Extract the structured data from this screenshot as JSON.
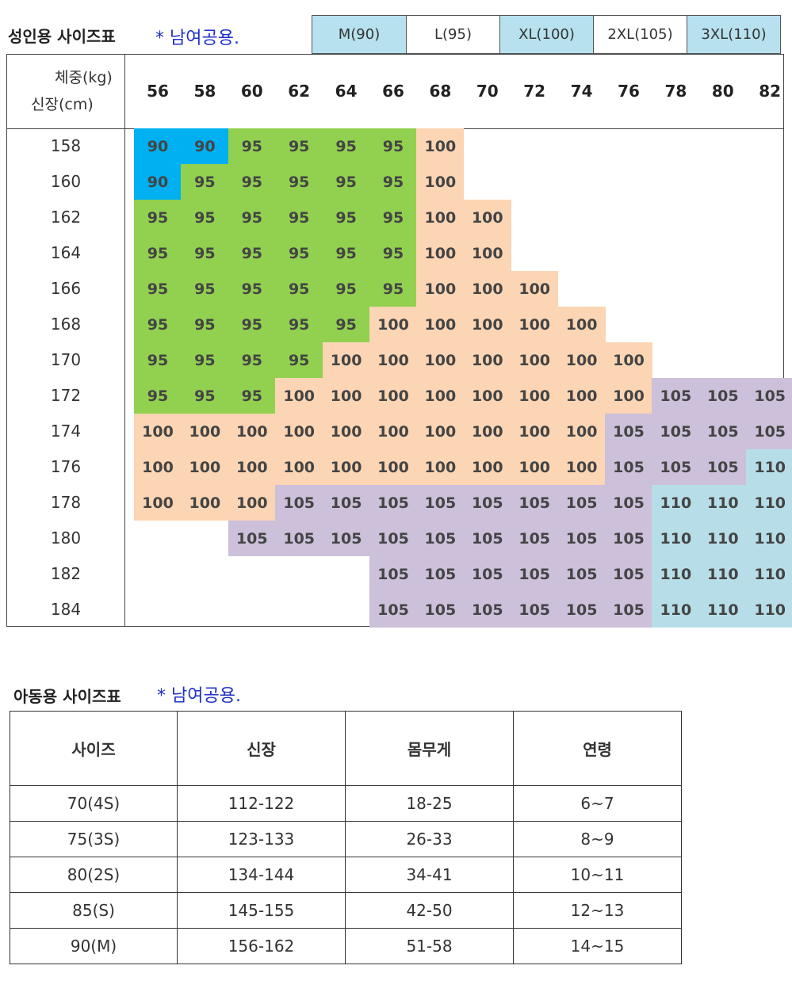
{
  "adult": {
    "title": "성인용 사이즈표",
    "note": "* 남여공용.",
    "legend": [
      {
        "label": "M(90)",
        "color": "#b7e1ee"
      },
      {
        "label": "L(95)",
        "color": "#ffffff"
      },
      {
        "label": "XL(100)",
        "color": "#b7e1ee"
      },
      {
        "label": "2XL(105)",
        "color": "#ffffff"
      },
      {
        "label": "3XL(110)",
        "color": "#b7e1ee"
      }
    ],
    "corner_weight": "체중(kg)",
    "corner_height": "신장(cm)",
    "weights": [
      "56",
      "58",
      "60",
      "62",
      "64",
      "66",
      "68",
      "70",
      "72",
      "74",
      "76",
      "78",
      "80",
      "82"
    ],
    "heights": [
      "158",
      "160",
      "162",
      "164",
      "166",
      "168",
      "170",
      "172",
      "174",
      "176",
      "178",
      "180",
      "182",
      "184"
    ],
    "size_colors": {
      "90": "#00b0f0",
      "95": "#92d050",
      "100": "#fcd5b4",
      "105": "#ccc0da",
      "110": "#b7dee8"
    },
    "grid": [
      [
        "90",
        "90",
        "95",
        "95",
        "95",
        "95",
        "100",
        "",
        "",
        "",
        "",
        "",
        "",
        ""
      ],
      [
        "90",
        "95",
        "95",
        "95",
        "95",
        "95",
        "100",
        "",
        "",
        "",
        "",
        "",
        "",
        ""
      ],
      [
        "95",
        "95",
        "95",
        "95",
        "95",
        "95",
        "100",
        "100",
        "",
        "",
        "",
        "",
        "",
        ""
      ],
      [
        "95",
        "95",
        "95",
        "95",
        "95",
        "95",
        "100",
        "100",
        "",
        "",
        "",
        "",
        "",
        ""
      ],
      [
        "95",
        "95",
        "95",
        "95",
        "95",
        "95",
        "100",
        "100",
        "100",
        "",
        "",
        "",
        "",
        ""
      ],
      [
        "95",
        "95",
        "95",
        "95",
        "95",
        "100",
        "100",
        "100",
        "100",
        "100",
        "",
        "",
        "",
        ""
      ],
      [
        "95",
        "95",
        "95",
        "95",
        "100",
        "100",
        "100",
        "100",
        "100",
        "100",
        "100",
        "",
        "",
        ""
      ],
      [
        "95",
        "95",
        "95",
        "100",
        "100",
        "100",
        "100",
        "100",
        "100",
        "100",
        "100",
        "105",
        "105",
        "105"
      ],
      [
        "100",
        "100",
        "100",
        "100",
        "100",
        "100",
        "100",
        "100",
        "100",
        "100",
        "105",
        "105",
        "105",
        "105"
      ],
      [
        "100",
        "100",
        "100",
        "100",
        "100",
        "100",
        "100",
        "100",
        "100",
        "100",
        "105",
        "105",
        "105",
        "110"
      ],
      [
        "100",
        "100",
        "100",
        "105",
        "105",
        "105",
        "105",
        "105",
        "105",
        "105",
        "105",
        "110",
        "110",
        "110"
      ],
      [
        "",
        "",
        "105",
        "105",
        "105",
        "105",
        "105",
        "105",
        "105",
        "105",
        "105",
        "110",
        "110",
        "110"
      ],
      [
        "",
        "",
        "",
        "",
        "",
        "105",
        "105",
        "105",
        "105",
        "105",
        "105",
        "110",
        "110",
        "110"
      ],
      [
        "",
        "",
        "",
        "",
        "",
        "105",
        "105",
        "105",
        "105",
        "105",
        "105",
        "110",
        "110",
        "110"
      ]
    ]
  },
  "child": {
    "title": "아동용 사이즈표",
    "note": "* 남여공용.",
    "headers": [
      "사이즈",
      "신장",
      "몸무게",
      "연령"
    ],
    "rows": [
      [
        "70(4S)",
        "112-122",
        "18-25",
        "6~7"
      ],
      [
        "75(3S)",
        "123-133",
        "26-33",
        "8~9"
      ],
      [
        "80(2S)",
        "134-144",
        "34-41",
        "10~11"
      ],
      [
        "85(S)",
        "145-155",
        "42-50",
        "12~13"
      ],
      [
        "90(M)",
        "156-162",
        "51-58",
        "14~15"
      ]
    ]
  }
}
